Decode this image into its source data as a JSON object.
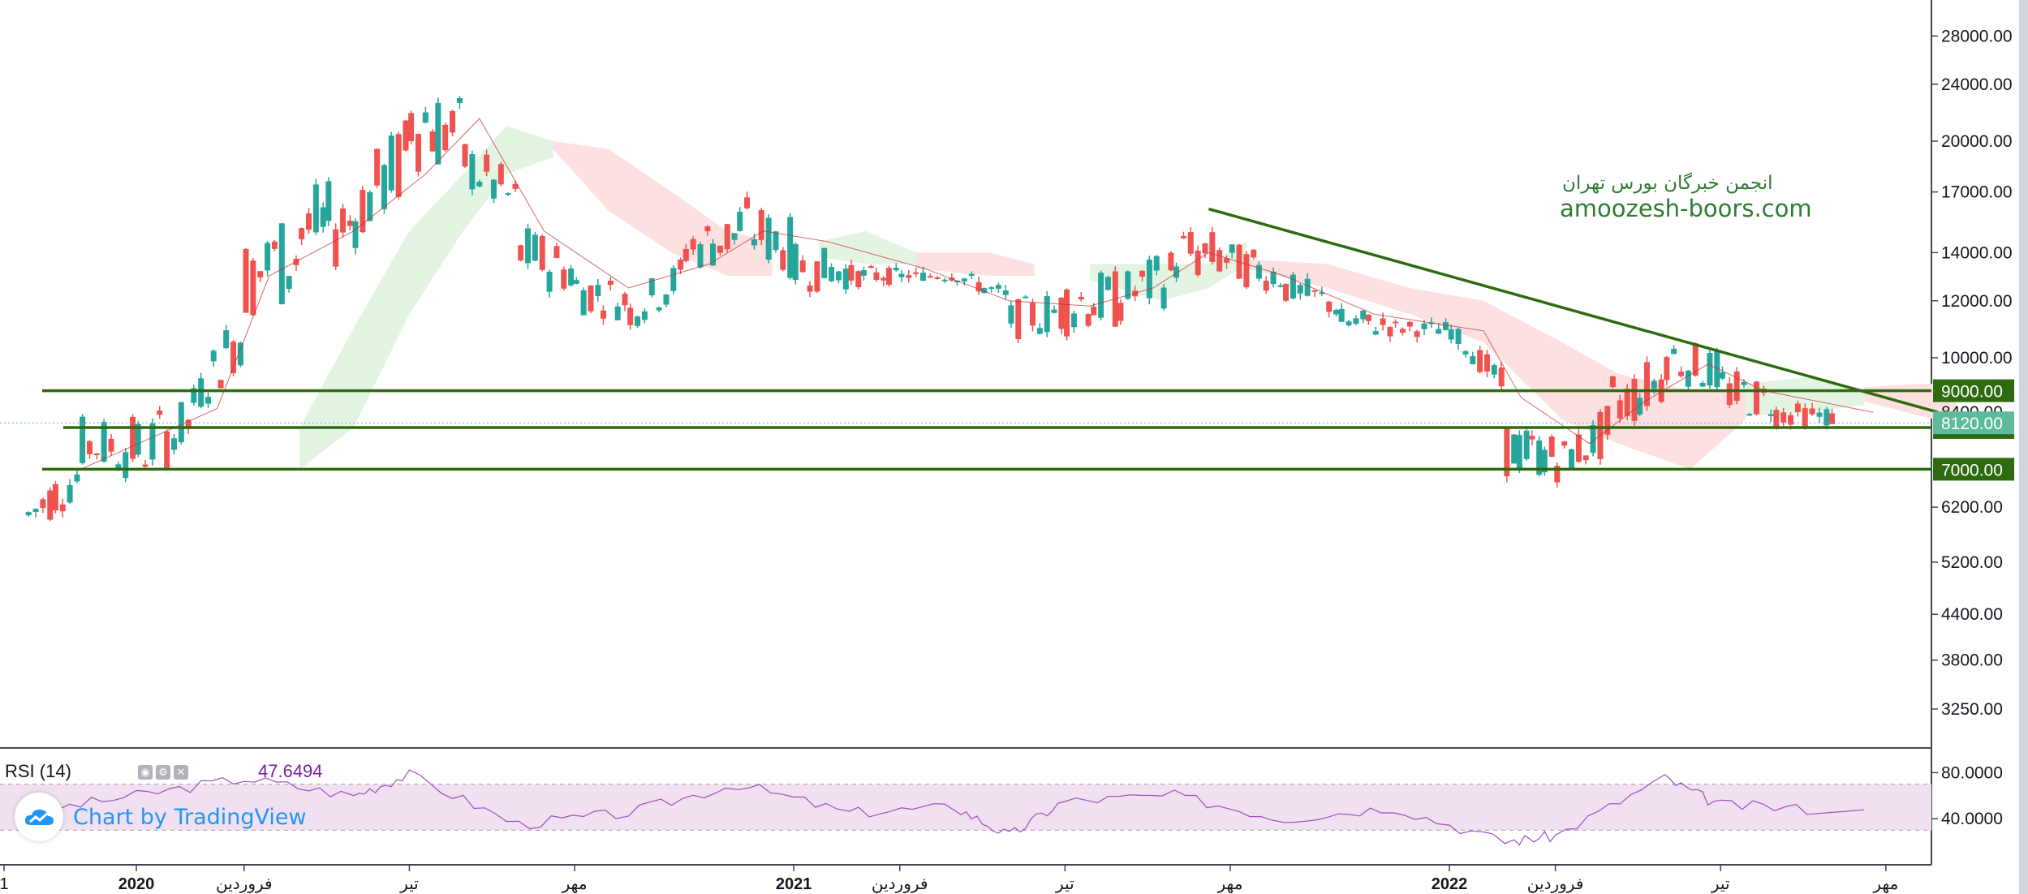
{
  "chart_data": [
    {
      "type": "candlestick",
      "title": "",
      "overlays": [
        "ichimoku cloud",
        "base line"
      ],
      "scale": "log",
      "price_axis": {
        "ticks": [
          "28000.00",
          "24000.00",
          "20000.00",
          "17000.00",
          "14000.00",
          "12000.00",
          "10000.00",
          "8400.00",
          "6200.00",
          "5200.00",
          "4400.00",
          "3800.00",
          "3250.00"
        ],
        "tick_values": [
          28000,
          24000,
          20000,
          17000,
          14000,
          12000,
          10000,
          8400,
          6200,
          5200,
          4400,
          3800,
          3250
        ],
        "range": [
          2800,
          30000
        ]
      },
      "time_axis": {
        "labels": [
          "1",
          "2020",
          "فروردین",
          "تیر",
          "مهر",
          "2021",
          "فروردین",
          "تیر",
          "مهر",
          "2022",
          "فروردین",
          "تیر",
          "مهر"
        ],
        "label_dates": [
          "2019-01",
          "2020-01",
          "2020-03",
          "2020-06",
          "2020-09",
          "2021-01",
          "2021-03",
          "2021-06",
          "2021-09",
          "2022-01",
          "2022-03",
          "2022-06",
          "2022-09"
        ],
        "range": [
          "2019-10",
          "2022-10"
        ]
      },
      "ohlc_approx": [
        {
          "date": "2019-11",
          "low": 5600,
          "high": 6500
        },
        {
          "date": "2019-12",
          "low": 6900,
          "high": 8300
        },
        {
          "date": "2020-01",
          "low": 6500,
          "high": 8400
        },
        {
          "date": "2020-02",
          "low": 8200,
          "high": 9200
        },
        {
          "date": "2020-03",
          "low": 11000,
          "high": 15000
        },
        {
          "date": "2020-04",
          "low": 12500,
          "high": 17500
        },
        {
          "date": "2020-05",
          "low": 14000,
          "high": 18000
        },
        {
          "date": "2020-06",
          "low": 18000,
          "high": 26000
        },
        {
          "date": "2020-07",
          "low": 17000,
          "high": 20500
        },
        {
          "date": "2020-08",
          "low": 12500,
          "high": 15500
        },
        {
          "date": "2020-09",
          "low": 11500,
          "high": 13500
        },
        {
          "date": "2020-10",
          "low": 10900,
          "high": 12300
        },
        {
          "date": "2020-11",
          "low": 13000,
          "high": 15500
        },
        {
          "date": "2020-12",
          "low": 13500,
          "high": 17000
        },
        {
          "date": "2021-01",
          "low": 12300,
          "high": 14500
        },
        {
          "date": "2021-02",
          "low": 12500,
          "high": 13500
        },
        {
          "date": "2021-03",
          "low": 12800,
          "high": 13200
        },
        {
          "date": "2021-04",
          "low": 12700,
          "high": 13300
        },
        {
          "date": "2021-05",
          "low": 10600,
          "high": 12000
        },
        {
          "date": "2021-06",
          "low": 10700,
          "high": 13300
        },
        {
          "date": "2021-07",
          "low": 11000,
          "high": 13200
        },
        {
          "date": "2021-08",
          "low": 12500,
          "high": 15500
        },
        {
          "date": "2021-09",
          "low": 12600,
          "high": 14500
        },
        {
          "date": "2021-10",
          "low": 11800,
          "high": 13200
        },
        {
          "date": "2021-11",
          "low": 10600,
          "high": 11800
        },
        {
          "date": "2021-12",
          "low": 10700,
          "high": 11300
        },
        {
          "date": "2022-01",
          "low": 10600,
          "high": 11200
        },
        {
          "date": "2022-02",
          "low": 6800,
          "high": 8200
        },
        {
          "date": "2022-03",
          "low": 6700,
          "high": 7600
        },
        {
          "date": "2022-04",
          "low": 7600,
          "high": 9600
        },
        {
          "date": "2022-05",
          "low": 9300,
          "high": 10800
        },
        {
          "date": "2022-06",
          "low": 8300,
          "high": 9800
        },
        {
          "date": "2022-07",
          "low": 8000,
          "high": 8700
        },
        {
          "date": "2022-08",
          "low": 8000,
          "high": 8500
        }
      ],
      "horizontal_levels": [
        {
          "label": "9000.00",
          "value": 9000
        },
        {
          "label": "8000.00",
          "value": 8000
        },
        {
          "label": "7000.00",
          "value": 7000
        }
      ],
      "current_price": {
        "label": "8120.00",
        "value": 8120
      },
      "trendline": {
        "start": {
          "date": "2021-08-20",
          "value": 16100
        },
        "end": {
          "date": "2022-09-30",
          "value": 8400
        }
      },
      "colors": {
        "up": "#26a69a",
        "down": "#ef5350",
        "levels": "#2e6b0f",
        "current_price": "#5dba9b",
        "cloud_bear": "#fde0e0",
        "cloud_bull": "#e3f4e3",
        "base_line": "#c62828"
      }
    },
    {
      "type": "line",
      "title": "RSI (14)",
      "current_value": "47.6494",
      "y_ticks": [
        "80.0000",
        "40.0000"
      ],
      "y_tick_values": [
        80,
        40
      ],
      "band": [
        30,
        70
      ],
      "range": [
        0,
        100
      ],
      "values_approx": [
        {
          "date": "2019-11",
          "value": 45
        },
        {
          "date": "2020-01",
          "value": 60
        },
        {
          "date": "2020-03",
          "value": 75
        },
        {
          "date": "2020-05",
          "value": 60
        },
        {
          "date": "2020-06",
          "value": 78
        },
        {
          "date": "2020-08",
          "value": 35
        },
        {
          "date": "2020-10",
          "value": 45
        },
        {
          "date": "2020-12",
          "value": 70
        },
        {
          "date": "2021-02",
          "value": 45
        },
        {
          "date": "2021-04",
          "value": 50
        },
        {
          "date": "2021-05",
          "value": 25
        },
        {
          "date": "2021-06",
          "value": 55
        },
        {
          "date": "2021-08",
          "value": 60
        },
        {
          "date": "2021-10",
          "value": 40
        },
        {
          "date": "2021-12",
          "value": 50
        },
        {
          "date": "2022-02",
          "value": 20
        },
        {
          "date": "2022-03",
          "value": 25
        },
        {
          "date": "2022-05",
          "value": 75
        },
        {
          "date": "2022-06",
          "value": 52
        },
        {
          "date": "2022-08",
          "value": 47.65
        }
      ],
      "colors": {
        "line": "#9c4fbf",
        "band": "#f0e0f0"
      }
    }
  ],
  "watermark": {
    "fa": "انجمن خبرگان بورس تهران",
    "en": "amoozesh-boors.com"
  },
  "rsi_legend": {
    "title": "RSI (14)",
    "value": "47.6494"
  },
  "attribution": {
    "text": "Chart by TradingView",
    "icon": "tradingview-cloud-icon"
  },
  "controls": [
    "eye-icon",
    "gear-icon",
    "close-icon"
  ]
}
